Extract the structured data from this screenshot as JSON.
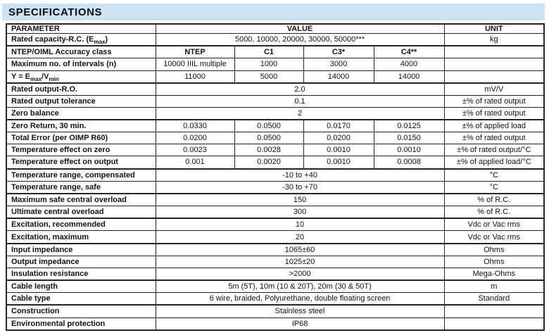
{
  "page": {
    "title": "SPECIFICATIONS",
    "accent_color": "#cde3f1",
    "border_color": "#26262a",
    "text_color": "#121215"
  },
  "table": {
    "header": {
      "parameter": "PARAMETER",
      "value": "VALUE",
      "unit": "UNIT"
    },
    "rows": [
      {
        "label": [
          {
            "t": "Rated capacity-R.C. (E"
          },
          {
            "s": "max"
          },
          {
            "t": ")"
          }
        ],
        "cells": [
          {
            "text": "5000, 10000, 20000, 30000, 50000***",
            "span": 4
          }
        ],
        "unit": "kg",
        "section": false,
        "bold": false
      },
      {
        "label": [
          {
            "t": "NTEP/OIML Accuracy class"
          }
        ],
        "cells": [
          {
            "text": "NTEP",
            "span": 1
          },
          {
            "text": "C1",
            "span": 1
          },
          {
            "text": "C3*",
            "span": 1
          },
          {
            "text": "C4**",
            "span": 1
          }
        ],
        "unit": "",
        "section": true,
        "bold": true
      },
      {
        "label": [
          {
            "t": "Maximum no. of intervals (n)"
          }
        ],
        "cells": [
          {
            "text": "10000 IIIL multiple",
            "span": 1
          },
          {
            "text": "1000",
            "span": 1
          },
          {
            "text": "3000",
            "span": 1
          },
          {
            "text": "4000",
            "span": 1
          }
        ],
        "unit": "",
        "section": false,
        "bold": false
      },
      {
        "label": [
          {
            "t": "Y = E"
          },
          {
            "s": "max"
          },
          {
            "t": "/V"
          },
          {
            "s": "min"
          }
        ],
        "cells": [
          {
            "text": "11000",
            "span": 1
          },
          {
            "text": "5000",
            "span": 1
          },
          {
            "text": "14000",
            "span": 1
          },
          {
            "text": "14000",
            "span": 1
          }
        ],
        "unit": "",
        "section": false,
        "bold": false
      },
      {
        "label": [
          {
            "t": "Rated output-R.O."
          }
        ],
        "cells": [
          {
            "text": "2.0",
            "span": 4
          }
        ],
        "unit": "mV/V",
        "section": true,
        "bold": false
      },
      {
        "label": [
          {
            "t": "Rated output tolerance"
          }
        ],
        "cells": [
          {
            "text": "0.1",
            "span": 4
          }
        ],
        "unit": "±% of rated output",
        "section": false,
        "bold": false
      },
      {
        "label": [
          {
            "t": "Zero balance"
          }
        ],
        "cells": [
          {
            "text": "2",
            "span": 4
          }
        ],
        "unit": "±% of rated output",
        "section": false,
        "bold": false
      },
      {
        "label": [
          {
            "t": "Zero Return, 30 min."
          }
        ],
        "cells": [
          {
            "text": "0.0330",
            "span": 1
          },
          {
            "text": "0.0500",
            "span": 1
          },
          {
            "text": "0.0170",
            "span": 1
          },
          {
            "text": "0.0125",
            "span": 1
          }
        ],
        "unit": "±% of applied load",
        "section": true,
        "bold": false
      },
      {
        "label": [
          {
            "t": "Total Error (per OIMP R60)"
          }
        ],
        "cells": [
          {
            "text": "0.0200",
            "span": 1
          },
          {
            "text": "0.0500",
            "span": 1
          },
          {
            "text": "0.0200",
            "span": 1
          },
          {
            "text": "0.0150",
            "span": 1
          }
        ],
        "unit": "±% of rated output",
        "section": false,
        "bold": false
      },
      {
        "label": [
          {
            "t": "Temperature effect on zero"
          }
        ],
        "cells": [
          {
            "text": "0.0023",
            "span": 1
          },
          {
            "text": "0.0028",
            "span": 1
          },
          {
            "text": "0.0010",
            "span": 1
          },
          {
            "text": "0.0010",
            "span": 1
          }
        ],
        "unit": "±% of rated output/°C",
        "section": false,
        "bold": false
      },
      {
        "label": [
          {
            "t": "Temperature effect on output"
          }
        ],
        "cells": [
          {
            "text": "0.001",
            "span": 1
          },
          {
            "text": "0.0020",
            "span": 1
          },
          {
            "text": "0.0010",
            "span": 1
          },
          {
            "text": "0.0008",
            "span": 1
          }
        ],
        "unit": "±% of applied load/°C",
        "section": false,
        "bold": false
      },
      {
        "label": [
          {
            "t": "Temperature range, compensated"
          }
        ],
        "cells": [
          {
            "text": "-10 to +40",
            "span": 4
          }
        ],
        "unit": "°C",
        "section": true,
        "bold": false
      },
      {
        "label": [
          {
            "t": "Temperature range, safe"
          }
        ],
        "cells": [
          {
            "text": "-30 to +70",
            "span": 4
          }
        ],
        "unit": "°C",
        "section": false,
        "bold": false
      },
      {
        "label": [
          {
            "t": "Maximum safe central overload"
          }
        ],
        "cells": [
          {
            "text": "150",
            "span": 4
          }
        ],
        "unit": "% of R.C.",
        "section": true,
        "bold": false
      },
      {
        "label": [
          {
            "t": "Ultimate central overload"
          }
        ],
        "cells": [
          {
            "text": "300",
            "span": 4
          }
        ],
        "unit": "% of R.C.",
        "section": false,
        "bold": false
      },
      {
        "label": [
          {
            "t": "Excitation, recommended"
          }
        ],
        "cells": [
          {
            "text": "10",
            "span": 4
          }
        ],
        "unit": "Vdc or Vac rms",
        "section": true,
        "bold": false
      },
      {
        "label": [
          {
            "t": "Excitation, maximum"
          }
        ],
        "cells": [
          {
            "text": "20",
            "span": 4
          }
        ],
        "unit": "Vdc or Vac rms",
        "section": false,
        "bold": false
      },
      {
        "label": [
          {
            "t": "Input impedance"
          }
        ],
        "cells": [
          {
            "text": "1065±60",
            "span": 4
          }
        ],
        "unit": "Ohms",
        "section": true,
        "bold": false
      },
      {
        "label": [
          {
            "t": "Output impedance"
          }
        ],
        "cells": [
          {
            "text": "1025±20",
            "span": 4
          }
        ],
        "unit": "Ohms",
        "section": false,
        "bold": false
      },
      {
        "label": [
          {
            "t": "Insulation resistance"
          }
        ],
        "cells": [
          {
            "text": ">2000",
            "span": 4
          }
        ],
        "unit": "Mega-Ohms",
        "section": false,
        "bold": false
      },
      {
        "label": [
          {
            "t": "Cable length"
          }
        ],
        "cells": [
          {
            "text": "5m (5T), 10m (10 & 20T), 20m (30 & 50T)",
            "span": 4
          }
        ],
        "unit": "m",
        "section": true,
        "bold": false
      },
      {
        "label": [
          {
            "t": "Cable type"
          }
        ],
        "cells": [
          {
            "text": "6 wire, braided, Polyurethane, double floating screen",
            "span": 4
          }
        ],
        "unit": "Standard",
        "section": false,
        "bold": false
      },
      {
        "label": [
          {
            "t": "Construction"
          }
        ],
        "cells": [
          {
            "text": "Stainless steel",
            "span": 4
          }
        ],
        "unit": "",
        "section": true,
        "bold": false
      },
      {
        "label": [
          {
            "t": "Environmental protection"
          }
        ],
        "cells": [
          {
            "text": "IP68",
            "span": 4
          }
        ],
        "unit": "",
        "section": false,
        "bold": false
      }
    ]
  }
}
